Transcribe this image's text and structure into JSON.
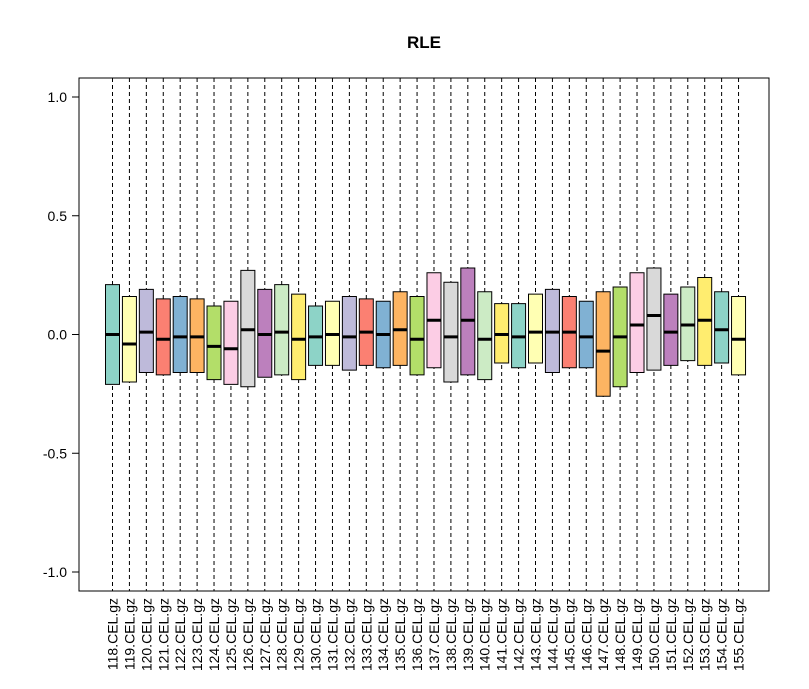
{
  "chart_data": {
    "type": "boxplot",
    "title": "RLE",
    "xlabel": "",
    "ylabel": "",
    "ylim": [
      -1.08,
      1.08
    ],
    "yticks": [
      -1.0,
      -0.5,
      0.0,
      0.5,
      1.0
    ],
    "ytick_labels": [
      "-1.0",
      "-0.5",
      "0.0",
      "0.5",
      "1.0"
    ],
    "whiskers": "dashed, extending beyond plot range",
    "categories": [
      "118.CEL.gz",
      "119.CEL.gz",
      "120.CEL.gz",
      "121.CEL.gz",
      "122.CEL.gz",
      "123.CEL.gz",
      "124.CEL.gz",
      "125.CEL.gz",
      "126.CEL.gz",
      "127.CEL.gz",
      "128.CEL.gz",
      "129.CEL.gz",
      "130.CEL.gz",
      "131.CEL.gz",
      "132.CEL.gz",
      "133.CEL.gz",
      "134.CEL.gz",
      "135.CEL.gz",
      "136.CEL.gz",
      "137.CEL.gz",
      "138.CEL.gz",
      "139.CEL.gz",
      "140.CEL.gz",
      "141.CEL.gz",
      "142.CEL.gz",
      "143.CEL.gz",
      "144.CEL.gz",
      "145.CEL.gz",
      "146.CEL.gz",
      "147.CEL.gz",
      "148.CEL.gz",
      "149.CEL.gz",
      "150.CEL.gz",
      "151.CEL.gz",
      "152.CEL.gz",
      "153.CEL.gz",
      "154.CEL.gz",
      "155.CEL.gz"
    ],
    "boxes": [
      {
        "q1": -0.21,
        "median": 0.0,
        "q3": 0.21,
        "color": "#8DD3C7"
      },
      {
        "q1": -0.2,
        "median": -0.04,
        "q3": 0.16,
        "color": "#FFFFB3"
      },
      {
        "q1": -0.16,
        "median": 0.01,
        "q3": 0.19,
        "color": "#BEBADA"
      },
      {
        "q1": -0.17,
        "median": -0.02,
        "q3": 0.15,
        "color": "#FB8072"
      },
      {
        "q1": -0.16,
        "median": -0.01,
        "q3": 0.16,
        "color": "#80B1D3"
      },
      {
        "q1": -0.16,
        "median": -0.01,
        "q3": 0.15,
        "color": "#FDB462"
      },
      {
        "q1": -0.19,
        "median": -0.05,
        "q3": 0.12,
        "color": "#B3DE69"
      },
      {
        "q1": -0.21,
        "median": -0.06,
        "q3": 0.14,
        "color": "#FCCDE5"
      },
      {
        "q1": -0.22,
        "median": 0.02,
        "q3": 0.27,
        "color": "#D9D9D9"
      },
      {
        "q1": -0.18,
        "median": 0.0,
        "q3": 0.19,
        "color": "#BC80BD"
      },
      {
        "q1": -0.17,
        "median": 0.01,
        "q3": 0.21,
        "color": "#CCEBC5"
      },
      {
        "q1": -0.19,
        "median": -0.02,
        "q3": 0.17,
        "color": "#FFED6F"
      },
      {
        "q1": -0.13,
        "median": -0.01,
        "q3": 0.12,
        "color": "#8DD3C7"
      },
      {
        "q1": -0.13,
        "median": 0.0,
        "q3": 0.14,
        "color": "#FFFFB3"
      },
      {
        "q1": -0.15,
        "median": -0.01,
        "q3": 0.16,
        "color": "#BEBADA"
      },
      {
        "q1": -0.13,
        "median": 0.01,
        "q3": 0.15,
        "color": "#FB8072"
      },
      {
        "q1": -0.14,
        "median": 0.0,
        "q3": 0.14,
        "color": "#80B1D3"
      },
      {
        "q1": -0.13,
        "median": 0.02,
        "q3": 0.18,
        "color": "#FDB462"
      },
      {
        "q1": -0.17,
        "median": -0.02,
        "q3": 0.16,
        "color": "#B3DE69"
      },
      {
        "q1": -0.14,
        "median": 0.06,
        "q3": 0.26,
        "color": "#FCCDE5"
      },
      {
        "q1": -0.2,
        "median": -0.01,
        "q3": 0.22,
        "color": "#D9D9D9"
      },
      {
        "q1": -0.17,
        "median": 0.06,
        "q3": 0.28,
        "color": "#BC80BD"
      },
      {
        "q1": -0.19,
        "median": -0.02,
        "q3": 0.18,
        "color": "#CCEBC5"
      },
      {
        "q1": -0.12,
        "median": 0.0,
        "q3": 0.13,
        "color": "#FFED6F"
      },
      {
        "q1": -0.14,
        "median": -0.01,
        "q3": 0.13,
        "color": "#8DD3C7"
      },
      {
        "q1": -0.12,
        "median": 0.01,
        "q3": 0.17,
        "color": "#FFFFB3"
      },
      {
        "q1": -0.16,
        "median": 0.01,
        "q3": 0.19,
        "color": "#BEBADA"
      },
      {
        "q1": -0.14,
        "median": 0.01,
        "q3": 0.16,
        "color": "#FB8072"
      },
      {
        "q1": -0.14,
        "median": -0.01,
        "q3": 0.14,
        "color": "#80B1D3"
      },
      {
        "q1": -0.26,
        "median": -0.07,
        "q3": 0.18,
        "color": "#FDB462"
      },
      {
        "q1": -0.22,
        "median": -0.01,
        "q3": 0.2,
        "color": "#B3DE69"
      },
      {
        "q1": -0.16,
        "median": 0.04,
        "q3": 0.26,
        "color": "#FCCDE5"
      },
      {
        "q1": -0.15,
        "median": 0.08,
        "q3": 0.28,
        "color": "#D9D9D9"
      },
      {
        "q1": -0.13,
        "median": 0.01,
        "q3": 0.17,
        "color": "#BC80BD"
      },
      {
        "q1": -0.11,
        "median": 0.04,
        "q3": 0.2,
        "color": "#CCEBC5"
      },
      {
        "q1": -0.13,
        "median": 0.06,
        "q3": 0.24,
        "color": "#FFED6F"
      },
      {
        "q1": -0.12,
        "median": 0.02,
        "q3": 0.18,
        "color": "#8DD3C7"
      },
      {
        "q1": -0.17,
        "median": -0.02,
        "q3": 0.16,
        "color": "#FFFFB3"
      }
    ]
  }
}
